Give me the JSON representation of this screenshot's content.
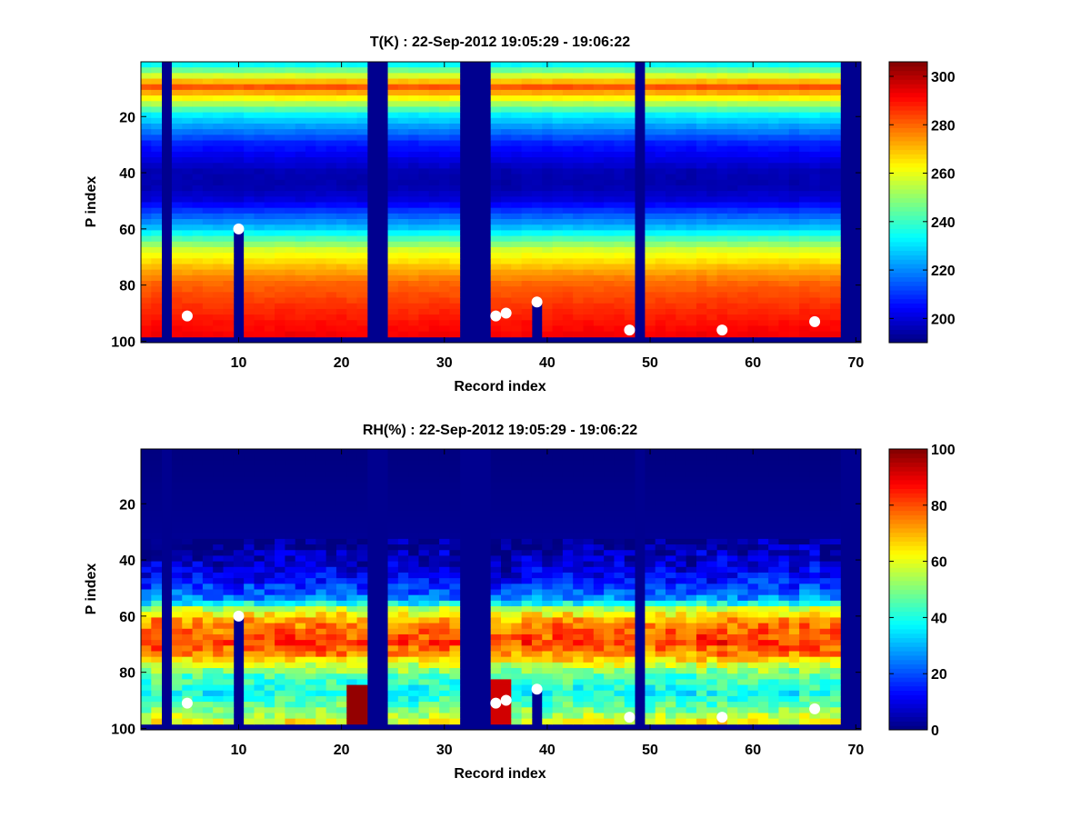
{
  "chart_data": [
    {
      "type": "heatmap",
      "title": "T(K) : 22-Sep-2012 19:05:29 - 19:06:22",
      "xlabel": "Record index",
      "ylabel": "P index",
      "xlim": [
        0.5,
        70.5
      ],
      "ylim": [
        0.5,
        100.5
      ],
      "y_reversed": true,
      "x_ticks": [
        10,
        20,
        30,
        40,
        50,
        60,
        70
      ],
      "y_ticks": [
        20,
        40,
        60,
        80,
        100
      ],
      "colormap": "jet",
      "clim": [
        190,
        306
      ],
      "colorbar_ticks": [
        200,
        220,
        240,
        260,
        280,
        300
      ],
      "grid": false,
      "colorbar_position": "right",
      "missing_records": [
        3,
        23,
        24,
        32,
        33,
        34,
        49,
        69,
        70
      ],
      "partial_records": [
        {
          "record": 10,
          "valid_until_p": 60
        },
        {
          "record": 39,
          "valid_until_p": 86
        }
      ],
      "bottom_missing_from_p": 99,
      "profile_levels": {
        "p": [
          1,
          6,
          10,
          15,
          20,
          30,
          40,
          45,
          50,
          60,
          68,
          75,
          80,
          88,
          94,
          98
        ],
        "value": [
          228,
          258,
          282,
          258,
          232,
          208,
          196,
          195,
          200,
          226,
          258,
          272,
          280,
          286,
          290,
          292
        ]
      },
      "markers": [
        {
          "x": 5,
          "y": 91
        },
        {
          "x": 10,
          "y": 60
        },
        {
          "x": 35,
          "y": 91
        },
        {
          "x": 36,
          "y": 90
        },
        {
          "x": 39,
          "y": 86
        },
        {
          "x": 48,
          "y": 96
        },
        {
          "x": 57,
          "y": 96
        },
        {
          "x": 66,
          "y": 93
        }
      ],
      "marker_color": "#ffffff",
      "missing_color": "#00008f"
    },
    {
      "type": "heatmap",
      "title": "RH(%) : 22-Sep-2012 19:05:29 - 19:06:22",
      "xlabel": "Record index",
      "ylabel": "P index",
      "xlim": [
        0.5,
        70.5
      ],
      "ylim": [
        0.5,
        100.5
      ],
      "y_reversed": true,
      "x_ticks": [
        10,
        20,
        30,
        40,
        50,
        60,
        70
      ],
      "y_ticks": [
        20,
        40,
        60,
        80,
        100
      ],
      "colormap": "jet",
      "clim": [
        0,
        100
      ],
      "colorbar_ticks": [
        0,
        20,
        40,
        60,
        80,
        100
      ],
      "grid": false,
      "colorbar_position": "right",
      "missing_records": [
        3,
        23,
        24,
        32,
        33,
        34,
        49,
        69,
        70
      ],
      "partial_records": [
        {
          "record": 10,
          "valid_until_p": 60
        },
        {
          "record": 39,
          "valid_until_p": 86
        }
      ],
      "bottom_missing_from_p": 99,
      "profile_levels": {
        "p": [
          1,
          34,
          40,
          48,
          55,
          58,
          62,
          66,
          70,
          74,
          78,
          82,
          88,
          94,
          98
        ],
        "value": [
          0,
          2,
          6,
          14,
          28,
          55,
          72,
          78,
          82,
          74,
          58,
          45,
          38,
          50,
          60
        ]
      },
      "saturated_patches": [
        {
          "records": [
            21,
            22
          ],
          "p_from": 85,
          "p_to": 98,
          "value": 98
        },
        {
          "records": [
            35,
            36
          ],
          "p_from": 84,
          "p_to": 98,
          "value": 92
        }
      ],
      "markers": [
        {
          "x": 5,
          "y": 91
        },
        {
          "x": 10,
          "y": 60
        },
        {
          "x": 35,
          "y": 91
        },
        {
          "x": 36,
          "y": 90
        },
        {
          "x": 39,
          "y": 86
        },
        {
          "x": 48,
          "y": 96
        },
        {
          "x": 57,
          "y": 96
        },
        {
          "x": 66,
          "y": 93
        }
      ],
      "marker_color": "#ffffff",
      "missing_color": "#00008f"
    }
  ]
}
